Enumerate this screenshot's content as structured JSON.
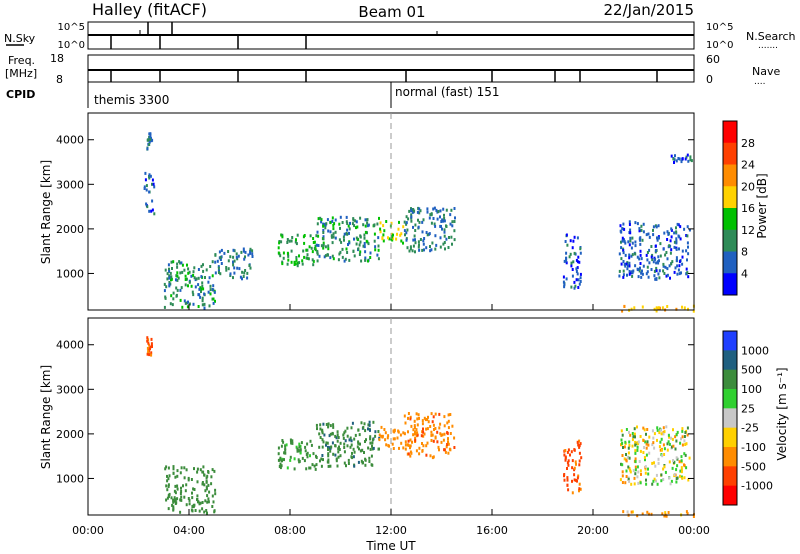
{
  "header": {
    "title_left": "Halley (fitACF)",
    "title_center": "Beam 01",
    "title_right": "22/Jan/2015"
  },
  "top_panel": {
    "left_label": "N.Sky",
    "left_ticks": [
      "10^5",
      "10^0"
    ],
    "right_label": "N.Search",
    "right_ticks": [
      "10^5",
      "10^0"
    ],
    "right_legend": "......."
  },
  "freq_panel": {
    "left_label_line1": "Freq.",
    "left_label_line2": "[MHz]",
    "left_ticks": [
      "18",
      "8"
    ],
    "right_label": "Nave",
    "right_ticks": [
      "60",
      "0"
    ],
    "right_legend": "...."
  },
  "cpid": {
    "label": "CPID",
    "mode1": "themis 3300",
    "mode2": "normal (fast) 151"
  },
  "power_panel": {
    "ylabel": "Slant Range [km]",
    "y_ticks": [
      "4000",
      "3000",
      "2000",
      "1000"
    ],
    "colorbar_label": "Power [dB]",
    "colorbar_ticks": [
      "28",
      "24",
      "20",
      "16",
      "12",
      "8",
      "4"
    ],
    "colorbar_colors": [
      "#ff0000",
      "#ff4000",
      "#ff8c00",
      "#ffd200",
      "#00c000",
      "#2e8b57",
      "#2060c0",
      "#0000ff"
    ]
  },
  "velocity_panel": {
    "ylabel": "Slant Range [km]",
    "y_ticks": [
      "4000",
      "3000",
      "2000",
      "1000"
    ],
    "colorbar_label": "Velocity [m s⁻¹]",
    "colorbar_ticks": [
      "1000",
      "500",
      "100",
      "25",
      "-25",
      "-100",
      "-500",
      "-1000"
    ],
    "colorbar_colors": [
      "#2040ff",
      "#206080",
      "#3c8c3c",
      "#30d030",
      "#c8c8c8",
      "#ffd000",
      "#ff8c00",
      "#ff4000",
      "#ff0000"
    ]
  },
  "x_axis": {
    "label": "Time UT",
    "ticks": [
      "00:00",
      "04:00",
      "08:00",
      "12:00",
      "16:00",
      "20:00",
      "00:00"
    ]
  },
  "chart_data": {
    "type": "heatmap",
    "title": "Halley (fitACF)  Beam 01  22/Jan/2015",
    "xlabel": "Time UT",
    "ylabel": "Slant Range [km]",
    "xlim": [
      0,
      24
    ],
    "ylim": [
      180,
      4600
    ],
    "cpid_changes": [
      {
        "time": 0,
        "mode": "themis 3300"
      },
      {
        "time": 12,
        "mode": "normal (fast) 151"
      }
    ],
    "power_regions": [
      {
        "t0": 2.3,
        "t1": 2.5,
        "r0": 3800,
        "r1": 4200,
        "power": 8
      },
      {
        "t0": 2.2,
        "t1": 2.6,
        "r0": 2300,
        "r1": 3300,
        "power": 6
      },
      {
        "t0": 3.0,
        "t1": 5.0,
        "r0": 250,
        "r1": 1300,
        "power": 10
      },
      {
        "t0": 5.0,
        "t1": 6.5,
        "r0": 900,
        "r1": 1600,
        "power": 8
      },
      {
        "t0": 7.5,
        "t1": 9.0,
        "r0": 1200,
        "r1": 1900,
        "power": 12
      },
      {
        "t0": 9.0,
        "t1": 11.5,
        "r0": 1300,
        "r1": 2300,
        "power": 10
      },
      {
        "t0": 11.5,
        "t1": 12.5,
        "r0": 1700,
        "r1": 2200,
        "power": 16
      },
      {
        "t0": 12.5,
        "t1": 14.5,
        "r0": 1500,
        "r1": 2500,
        "power": 8
      },
      {
        "t0": 18.8,
        "t1": 19.5,
        "r0": 700,
        "r1": 1900,
        "power": 6
      },
      {
        "t0": 21.0,
        "t1": 23.8,
        "r0": 900,
        "r1": 2200,
        "power": 6
      },
      {
        "t0": 23.0,
        "t1": 23.9,
        "r0": 3500,
        "r1": 3700,
        "power": 6
      },
      {
        "t0": 21.0,
        "t1": 24.0,
        "r0": 180,
        "r1": 300,
        "power": 20
      }
    ],
    "velocity_regions": [
      {
        "t0": 2.3,
        "t1": 2.5,
        "r0": 3800,
        "r1": 4200,
        "velocity": -500
      },
      {
        "t0": 3.0,
        "t1": 5.0,
        "r0": 250,
        "r1": 1300,
        "velocity": 300
      },
      {
        "t0": 7.5,
        "t1": 9.0,
        "r0": 1200,
        "r1": 1900,
        "velocity": 200
      },
      {
        "t0": 9.0,
        "t1": 11.5,
        "r0": 1300,
        "r1": 2300,
        "velocity": 400
      },
      {
        "t0": 11.5,
        "t1": 12.5,
        "r0": 1700,
        "r1": 2200,
        "velocity": -300
      },
      {
        "t0": 12.5,
        "t1": 14.5,
        "r0": 1500,
        "r1": 2500,
        "velocity": -400
      },
      {
        "t0": 18.8,
        "t1": 19.5,
        "r0": 700,
        "r1": 1900,
        "velocity": -600
      },
      {
        "t0": 21.0,
        "t1": 23.8,
        "r0": 900,
        "r1": 2200,
        "velocity": 0
      },
      {
        "t0": 21.0,
        "t1": 24.0,
        "r0": 180,
        "r1": 300,
        "velocity": -150
      }
    ]
  }
}
